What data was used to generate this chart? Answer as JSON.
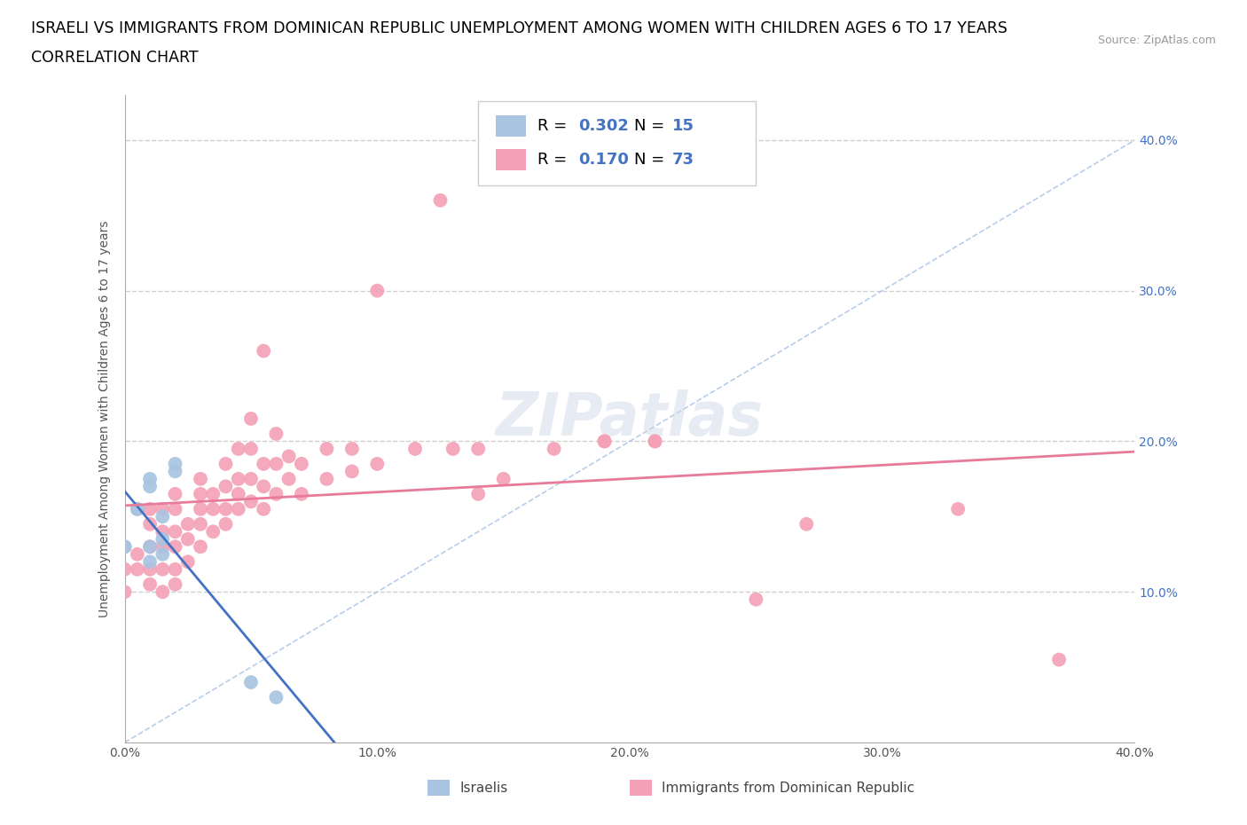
{
  "title_line1": "ISRAELI VS IMMIGRANTS FROM DOMINICAN REPUBLIC UNEMPLOYMENT AMONG WOMEN WITH CHILDREN AGES 6 TO 17 YEARS",
  "title_line2": "CORRELATION CHART",
  "source_text": "Source: ZipAtlas.com",
  "ylabel": "Unemployment Among Women with Children Ages 6 to 17 years",
  "xlim": [
    0.0,
    0.4
  ],
  "ylim": [
    0.0,
    0.43
  ],
  "xticks": [
    0.0,
    0.1,
    0.2,
    0.3,
    0.4
  ],
  "yticks": [
    0.0,
    0.1,
    0.2,
    0.3,
    0.4
  ],
  "xticklabels": [
    "0.0%",
    "10.0%",
    "20.0%",
    "30.0%",
    "40.0%"
  ],
  "yticklabels_right": [
    "",
    "10.0%",
    "20.0%",
    "30.0%",
    "40.0%"
  ],
  "grid_color": "#d0d0d0",
  "watermark_text": "ZIPatlas",
  "israeli_color": "#a8c4e0",
  "dominican_color": "#f4a0b5",
  "israeli_line_color": "#4472c4",
  "dominican_line_color": "#e87a9a",
  "diagonal_color": "#b0c8e8",
  "r_n_color": "#4472c4",
  "israeli_scatter": [
    [
      0.0,
      0.13
    ],
    [
      0.0,
      0.13
    ],
    [
      0.005,
      0.155
    ],
    [
      0.005,
      0.155
    ],
    [
      0.01,
      0.17
    ],
    [
      0.01,
      0.175
    ],
    [
      0.01,
      0.13
    ],
    [
      0.01,
      0.12
    ],
    [
      0.015,
      0.15
    ],
    [
      0.015,
      0.135
    ],
    [
      0.015,
      0.125
    ],
    [
      0.02,
      0.185
    ],
    [
      0.02,
      0.18
    ],
    [
      0.05,
      0.04
    ],
    [
      0.06,
      0.03
    ]
  ],
  "dominican_scatter": [
    [
      0.0,
      0.1
    ],
    [
      0.0,
      0.115
    ],
    [
      0.005,
      0.115
    ],
    [
      0.005,
      0.125
    ],
    [
      0.01,
      0.105
    ],
    [
      0.01,
      0.115
    ],
    [
      0.01,
      0.13
    ],
    [
      0.01,
      0.145
    ],
    [
      0.01,
      0.155
    ],
    [
      0.015,
      0.1
    ],
    [
      0.015,
      0.115
    ],
    [
      0.015,
      0.13
    ],
    [
      0.015,
      0.14
    ],
    [
      0.015,
      0.155
    ],
    [
      0.02,
      0.105
    ],
    [
      0.02,
      0.115
    ],
    [
      0.02,
      0.13
    ],
    [
      0.02,
      0.14
    ],
    [
      0.02,
      0.155
    ],
    [
      0.02,
      0.165
    ],
    [
      0.025,
      0.12
    ],
    [
      0.025,
      0.135
    ],
    [
      0.025,
      0.145
    ],
    [
      0.03,
      0.13
    ],
    [
      0.03,
      0.145
    ],
    [
      0.03,
      0.155
    ],
    [
      0.03,
      0.165
    ],
    [
      0.03,
      0.175
    ],
    [
      0.035,
      0.14
    ],
    [
      0.035,
      0.155
    ],
    [
      0.035,
      0.165
    ],
    [
      0.04,
      0.145
    ],
    [
      0.04,
      0.155
    ],
    [
      0.04,
      0.17
    ],
    [
      0.04,
      0.185
    ],
    [
      0.045,
      0.155
    ],
    [
      0.045,
      0.165
    ],
    [
      0.045,
      0.175
    ],
    [
      0.045,
      0.195
    ],
    [
      0.05,
      0.16
    ],
    [
      0.05,
      0.175
    ],
    [
      0.05,
      0.195
    ],
    [
      0.05,
      0.215
    ],
    [
      0.055,
      0.155
    ],
    [
      0.055,
      0.17
    ],
    [
      0.055,
      0.185
    ],
    [
      0.055,
      0.26
    ],
    [
      0.06,
      0.165
    ],
    [
      0.06,
      0.185
    ],
    [
      0.06,
      0.205
    ],
    [
      0.065,
      0.175
    ],
    [
      0.065,
      0.19
    ],
    [
      0.07,
      0.165
    ],
    [
      0.07,
      0.185
    ],
    [
      0.08,
      0.175
    ],
    [
      0.08,
      0.195
    ],
    [
      0.09,
      0.18
    ],
    [
      0.09,
      0.195
    ],
    [
      0.1,
      0.185
    ],
    [
      0.1,
      0.3
    ],
    [
      0.115,
      0.195
    ],
    [
      0.125,
      0.36
    ],
    [
      0.13,
      0.195
    ],
    [
      0.14,
      0.165
    ],
    [
      0.14,
      0.195
    ],
    [
      0.15,
      0.175
    ],
    [
      0.17,
      0.195
    ],
    [
      0.19,
      0.2
    ],
    [
      0.19,
      0.2
    ],
    [
      0.21,
      0.2
    ],
    [
      0.21,
      0.2
    ],
    [
      0.25,
      0.095
    ],
    [
      0.27,
      0.145
    ],
    [
      0.33,
      0.155
    ],
    [
      0.37,
      0.055
    ]
  ],
  "background_color": "#ffffff",
  "title_fontsize": 12.5,
  "subtitle_fontsize": 12.5,
  "axis_label_fontsize": 10,
  "tick_fontsize": 10,
  "legend_fontsize": 13
}
